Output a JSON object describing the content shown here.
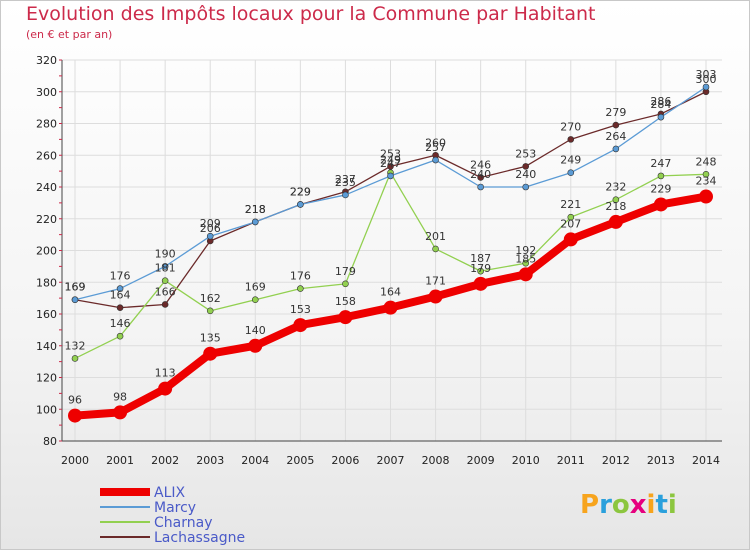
{
  "header": {
    "title": "Evolution des Impôts locaux pour la Commune par Habitant",
    "subtitle": "(en € et par an)"
  },
  "logo": {
    "text": "Proxiti"
  },
  "colors": {
    "title": "#cc2a4a",
    "ALIX": "#ee0000",
    "Marcy": "#5b9bd5",
    "Charnay": "#92d050",
    "Lachassagne": "#6b2a2a"
  },
  "chart_data": {
    "type": "line",
    "title": "Evolution des Impôts locaux pour la Commune par Habitant",
    "subtitle": "(en € et par an)",
    "xlabel": "",
    "ylabel": "",
    "x": [
      2000,
      2001,
      2002,
      2003,
      2004,
      2005,
      2006,
      2007,
      2008,
      2009,
      2010,
      2011,
      2012,
      2013,
      2014
    ],
    "ylim": [
      80,
      320
    ],
    "yticks": [
      80,
      100,
      120,
      140,
      160,
      180,
      200,
      220,
      240,
      260,
      280,
      300,
      320
    ],
    "grid": true,
    "legend": "bottom-left",
    "series": [
      {
        "name": "ALIX",
        "values": [
          96,
          98,
          113,
          135,
          140,
          153,
          158,
          164,
          171,
          179,
          185,
          207,
          218,
          229,
          234
        ]
      },
      {
        "name": "Marcy",
        "values": [
          169,
          176,
          190,
          209,
          218,
          229,
          235,
          247,
          257,
          240,
          240,
          249,
          264,
          284,
          303
        ]
      },
      {
        "name": "Charnay",
        "values": [
          132,
          146,
          181,
          162,
          169,
          176,
          179,
          249,
          201,
          187,
          192,
          221,
          232,
          247,
          248
        ]
      },
      {
        "name": "Lachassagne",
        "values": [
          169,
          164,
          166,
          206,
          218,
          229,
          237,
          253,
          260,
          246,
          253,
          270,
          279,
          286,
          300
        ]
      }
    ]
  }
}
